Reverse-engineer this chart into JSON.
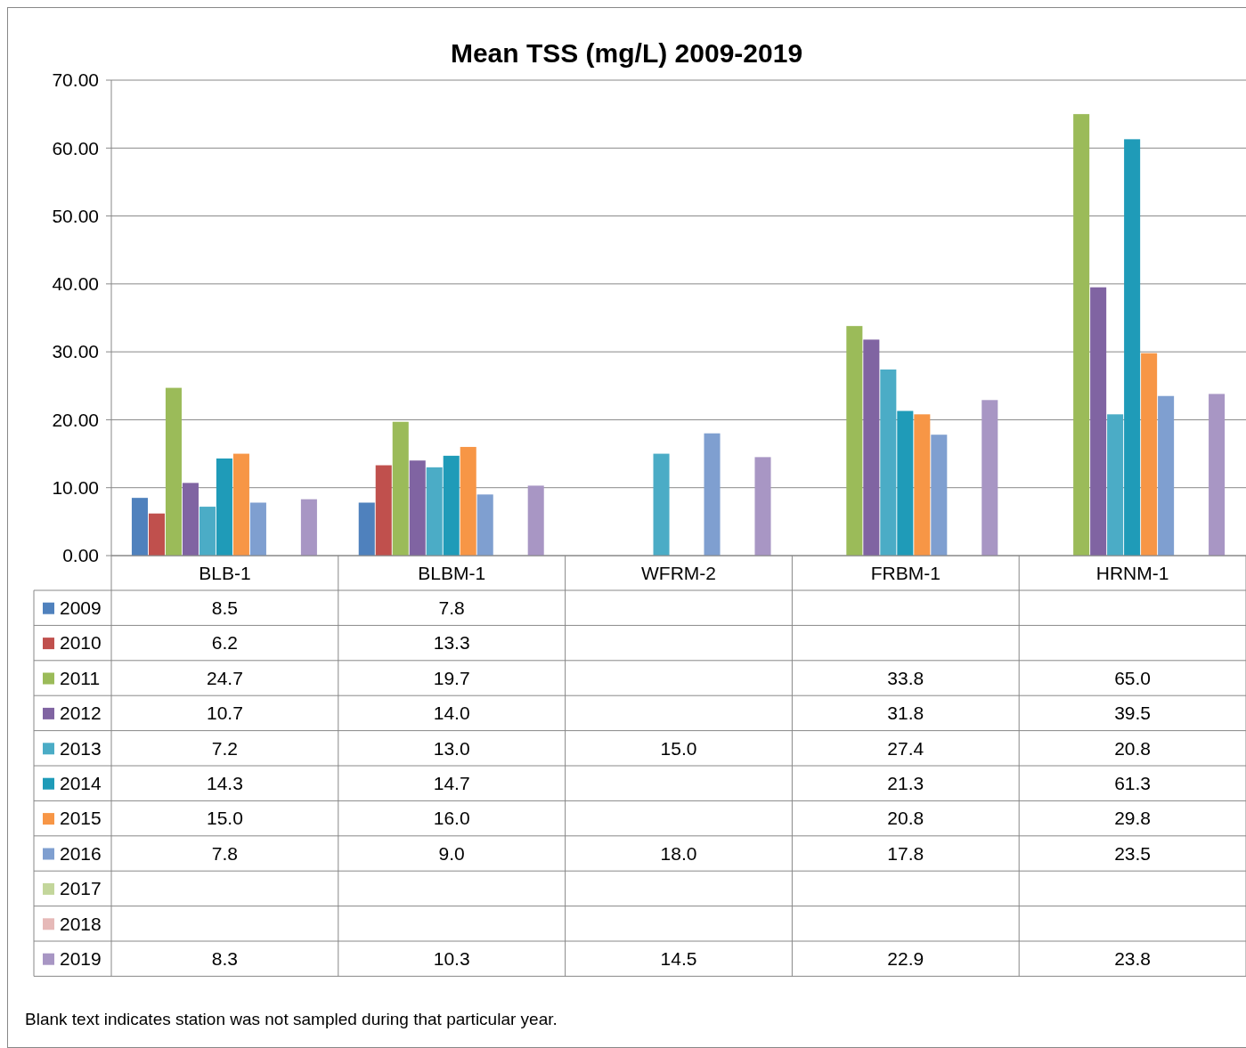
{
  "chart_data": {
    "type": "bar",
    "title": "Mean TSS (mg/L) 2009-2019",
    "categories": [
      "BLB-1",
      "BLBM-1",
      "WFRM-2",
      "FRBM-1",
      "HRNM-1"
    ],
    "ylim": [
      0,
      70
    ],
    "yticks": [
      {
        "value": 0,
        "label": "0.00"
      },
      {
        "value": 10,
        "label": "10.00"
      },
      {
        "value": 20,
        "label": "20.00"
      },
      {
        "value": 30,
        "label": "30.00"
      },
      {
        "value": 40,
        "label": "40.00"
      },
      {
        "value": 50,
        "label": "50.00"
      },
      {
        "value": 60,
        "label": "60.00"
      },
      {
        "value": 70,
        "label": "70.00"
      }
    ],
    "grid": "y",
    "legend": "bottom",
    "series": [
      {
        "name": "2009",
        "color": "#4f81bd",
        "values": [
          8.5,
          7.8,
          null,
          null,
          null
        ],
        "value_labels": [
          "8.5",
          "7.8",
          null,
          null,
          null
        ]
      },
      {
        "name": "2010",
        "color": "#c0504d",
        "values": [
          6.2,
          13.3,
          null,
          null,
          null
        ],
        "value_labels": [
          "6.2",
          "13.3",
          null,
          null,
          null
        ]
      },
      {
        "name": "2011",
        "color": "#9bbb59",
        "values": [
          24.7,
          19.7,
          null,
          33.8,
          65.0
        ],
        "value_labels": [
          "24.7",
          "19.7",
          null,
          "33.8",
          "65.0"
        ]
      },
      {
        "name": "2012",
        "color": "#8064a2",
        "values": [
          10.7,
          14.0,
          null,
          31.8,
          39.5
        ],
        "value_labels": [
          "10.7",
          "14.0",
          null,
          "31.8",
          "39.5"
        ]
      },
      {
        "name": "2013",
        "color": "#4bacc6",
        "values": [
          7.2,
          13.0,
          15.0,
          27.4,
          20.8
        ],
        "value_labels": [
          "7.2",
          "13.0",
          "15.0",
          "27.4",
          "20.8"
        ]
      },
      {
        "name": "2014",
        "color": "#1f9bb8",
        "values": [
          14.3,
          14.7,
          null,
          21.3,
          61.3
        ],
        "value_labels": [
          "14.3",
          "14.7",
          null,
          "21.3",
          "61.3"
        ]
      },
      {
        "name": "2015",
        "color": "#f79646",
        "values": [
          15.0,
          16.0,
          null,
          20.8,
          29.8
        ],
        "value_labels": [
          "15.0",
          "16.0",
          null,
          "20.8",
          "29.8"
        ]
      },
      {
        "name": "2016",
        "color": "#7f9fd0",
        "values": [
          7.8,
          9.0,
          18.0,
          17.8,
          23.5
        ],
        "value_labels": [
          "7.8",
          "9.0",
          "18.0",
          "17.8",
          "23.5"
        ]
      },
      {
        "name": "2017",
        "color": "#c3d69b",
        "values": [
          null,
          null,
          null,
          null,
          null
        ],
        "value_labels": [
          null,
          null,
          null,
          null,
          null
        ]
      },
      {
        "name": "2018",
        "color": "#e6b9b8",
        "values": [
          null,
          null,
          null,
          null,
          null
        ],
        "value_labels": [
          null,
          null,
          null,
          null,
          null
        ]
      },
      {
        "name": "2019",
        "color": "#a896c4",
        "values": [
          8.3,
          10.3,
          14.5,
          22.9,
          23.8
        ],
        "value_labels": [
          "8.3",
          "10.3",
          "14.5",
          "22.9",
          "23.8"
        ]
      }
    ],
    "annotations": [
      "Blank text indicates station was not sampled during that particular year."
    ]
  }
}
